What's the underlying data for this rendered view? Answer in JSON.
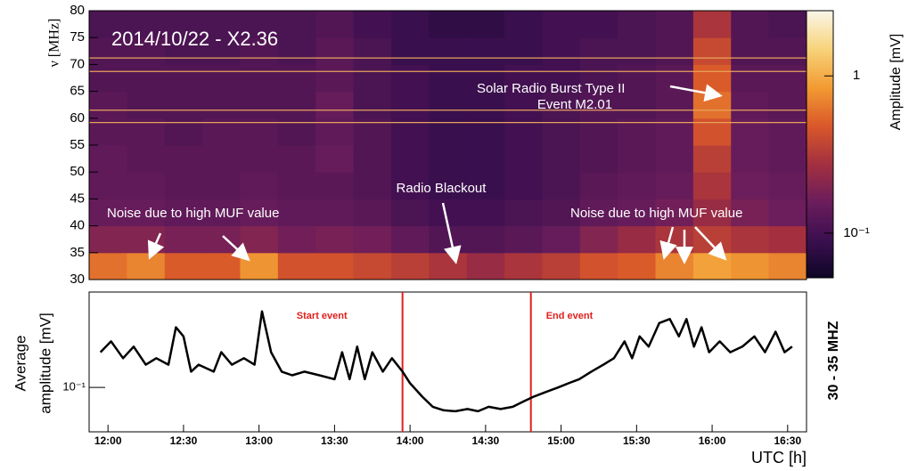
{
  "chart_data": [
    {
      "type": "heatmap",
      "title": "2014/10/22 -  X2.36",
      "ylabel": "ν [MHz]",
      "zlabel": "Amplitude [mV]",
      "xlim": [
        11.875,
        16.625
      ],
      "ylim": [
        30,
        80
      ],
      "yticks": [
        30,
        35,
        40,
        45,
        50,
        55,
        60,
        65,
        70,
        75,
        80
      ],
      "zlim": [
        0.052,
        2.6
      ],
      "zscale": "log",
      "zticks": [
        {
          "value": 0.1,
          "label": "10⁻¹"
        },
        1
      ],
      "colormap": [
        "#0d0624",
        "#3b0f4f",
        "#6b1d5c",
        "#a3303f",
        "#d9582a",
        "#f29b33",
        "#f7d37a",
        "#fbf6e8"
      ],
      "x": [
        12.0,
        12.25,
        12.5,
        12.75,
        13.0,
        13.25,
        13.5,
        13.75,
        14.0,
        14.25,
        14.5,
        14.75,
        15.0,
        15.25,
        15.5,
        15.75,
        16.0,
        16.25,
        16.5
      ],
      "y": [
        32.5,
        37.5,
        42.5,
        47.5,
        52.5,
        57.5,
        62.5,
        67.5,
        72.5,
        77.5
      ],
      "z": [
        [
          0.6,
          0.7,
          0.5,
          0.5,
          0.8,
          0.45,
          0.45,
          0.4,
          0.35,
          0.3,
          0.25,
          0.3,
          0.35,
          0.45,
          0.5,
          0.7,
          0.9,
          0.8,
          0.7
        ],
        [
          0.2,
          0.2,
          0.18,
          0.18,
          0.2,
          0.17,
          0.18,
          0.17,
          0.14,
          0.12,
          0.12,
          0.13,
          0.15,
          0.2,
          0.25,
          0.3,
          0.35,
          0.3,
          0.28
        ],
        [
          0.15,
          0.15,
          0.14,
          0.14,
          0.15,
          0.14,
          0.14,
          0.13,
          0.11,
          0.1,
          0.1,
          0.11,
          0.12,
          0.14,
          0.15,
          0.17,
          0.25,
          0.18,
          0.16
        ],
        [
          0.14,
          0.14,
          0.13,
          0.13,
          0.14,
          0.13,
          0.13,
          0.12,
          0.1,
          0.09,
          0.09,
          0.1,
          0.11,
          0.13,
          0.14,
          0.15,
          0.3,
          0.16,
          0.15
        ],
        [
          0.14,
          0.13,
          0.13,
          0.13,
          0.13,
          0.13,
          0.15,
          0.12,
          0.1,
          0.09,
          0.09,
          0.1,
          0.11,
          0.12,
          0.13,
          0.14,
          0.35,
          0.15,
          0.14
        ],
        [
          0.13,
          0.13,
          0.12,
          0.13,
          0.13,
          0.12,
          0.14,
          0.12,
          0.1,
          0.09,
          0.09,
          0.1,
          0.11,
          0.12,
          0.13,
          0.14,
          0.45,
          0.15,
          0.14
        ],
        [
          0.13,
          0.12,
          0.12,
          0.12,
          0.12,
          0.12,
          0.15,
          0.11,
          0.1,
          0.09,
          0.09,
          0.1,
          0.11,
          0.12,
          0.12,
          0.13,
          0.6,
          0.14,
          0.13
        ],
        [
          0.12,
          0.12,
          0.12,
          0.12,
          0.12,
          0.12,
          0.13,
          0.11,
          0.1,
          0.09,
          0.09,
          0.1,
          0.1,
          0.11,
          0.12,
          0.13,
          0.5,
          0.13,
          0.13
        ],
        [
          0.12,
          0.12,
          0.11,
          0.11,
          0.12,
          0.11,
          0.13,
          0.11,
          0.09,
          0.09,
          0.09,
          0.09,
          0.1,
          0.11,
          0.11,
          0.12,
          0.4,
          0.12,
          0.12
        ],
        [
          0.11,
          0.11,
          0.11,
          0.11,
          0.11,
          0.11,
          0.12,
          0.1,
          0.09,
          0.08,
          0.08,
          0.09,
          0.1,
          0.1,
          0.11,
          0.12,
          0.3,
          0.12,
          0.11
        ]
      ],
      "hlines": [
        59.2,
        61.5,
        68.7,
        71.2
      ],
      "hline_color": "#e8a35a",
      "annotations": [
        "Solar Radio Burst Type II",
        "Event M2.01",
        "Radio Blackout",
        "Noise due to high MUF value",
        "Noise due to high MUF value"
      ]
    },
    {
      "type": "line",
      "ylabel": [
        "Average",
        "amplitude [mV]"
      ],
      "xlabel": "UTC [h]",
      "side_label": "30 - 35 MHZ",
      "xlim": [
        11.875,
        16.625
      ],
      "xticks": [
        {
          "value": 12,
          "label": "12:00"
        },
        {
          "value": 12.5,
          "label": "12:30"
        },
        {
          "value": 13,
          "label": "13:00"
        },
        {
          "value": 13.5,
          "label": "13:30"
        },
        {
          "value": 14,
          "label": "14:00"
        },
        {
          "value": 14.5,
          "label": "14:30"
        },
        {
          "value": 15,
          "label": "15:00"
        },
        {
          "value": 15.5,
          "label": "15:30"
        },
        {
          "value": 16,
          "label": "16:00"
        },
        {
          "value": 16.5,
          "label": "16:30"
        }
      ],
      "ylim": [
        0.06,
        0.3
      ],
      "yscale": "log",
      "yticks": [
        {
          "value": 0.1,
          "label": "10⁻¹"
        }
      ],
      "color": "#000000",
      "event_color": "#e0201c",
      "events": [
        {
          "x": 13.95,
          "label": "Start event"
        },
        {
          "x": 14.8,
          "label": "End event"
        }
      ],
      "x": [
        11.95,
        12.02,
        12.1,
        12.17,
        12.25,
        12.32,
        12.4,
        12.45,
        12.5,
        12.55,
        12.6,
        12.7,
        12.75,
        12.82,
        12.9,
        12.97,
        13.02,
        13.08,
        13.15,
        13.22,
        13.3,
        13.4,
        13.5,
        13.55,
        13.6,
        13.65,
        13.7,
        13.75,
        13.82,
        13.88,
        13.95,
        14.0,
        14.08,
        14.15,
        14.22,
        14.3,
        14.38,
        14.45,
        14.52,
        14.6,
        14.68,
        14.75,
        14.82,
        14.9,
        14.98,
        15.05,
        15.12,
        15.2,
        15.28,
        15.35,
        15.42,
        15.47,
        15.52,
        15.58,
        15.65,
        15.72,
        15.78,
        15.83,
        15.88,
        15.93,
        15.98,
        16.05,
        16.12,
        16.2,
        16.28,
        16.35,
        16.42,
        16.48,
        16.53
      ],
      "values": [
        0.15,
        0.17,
        0.14,
        0.16,
        0.13,
        0.14,
        0.13,
        0.2,
        0.18,
        0.12,
        0.13,
        0.12,
        0.15,
        0.13,
        0.14,
        0.13,
        0.24,
        0.15,
        0.12,
        0.115,
        0.12,
        0.115,
        0.11,
        0.15,
        0.11,
        0.16,
        0.11,
        0.15,
        0.12,
        0.14,
        0.12,
        0.105,
        0.09,
        0.08,
        0.077,
        0.076,
        0.078,
        0.076,
        0.08,
        0.078,
        0.08,
        0.085,
        0.09,
        0.095,
        0.1,
        0.105,
        0.11,
        0.12,
        0.13,
        0.14,
        0.17,
        0.14,
        0.18,
        0.16,
        0.21,
        0.22,
        0.18,
        0.22,
        0.16,
        0.2,
        0.15,
        0.17,
        0.15,
        0.16,
        0.18,
        0.15,
        0.19,
        0.15,
        0.16
      ]
    }
  ]
}
